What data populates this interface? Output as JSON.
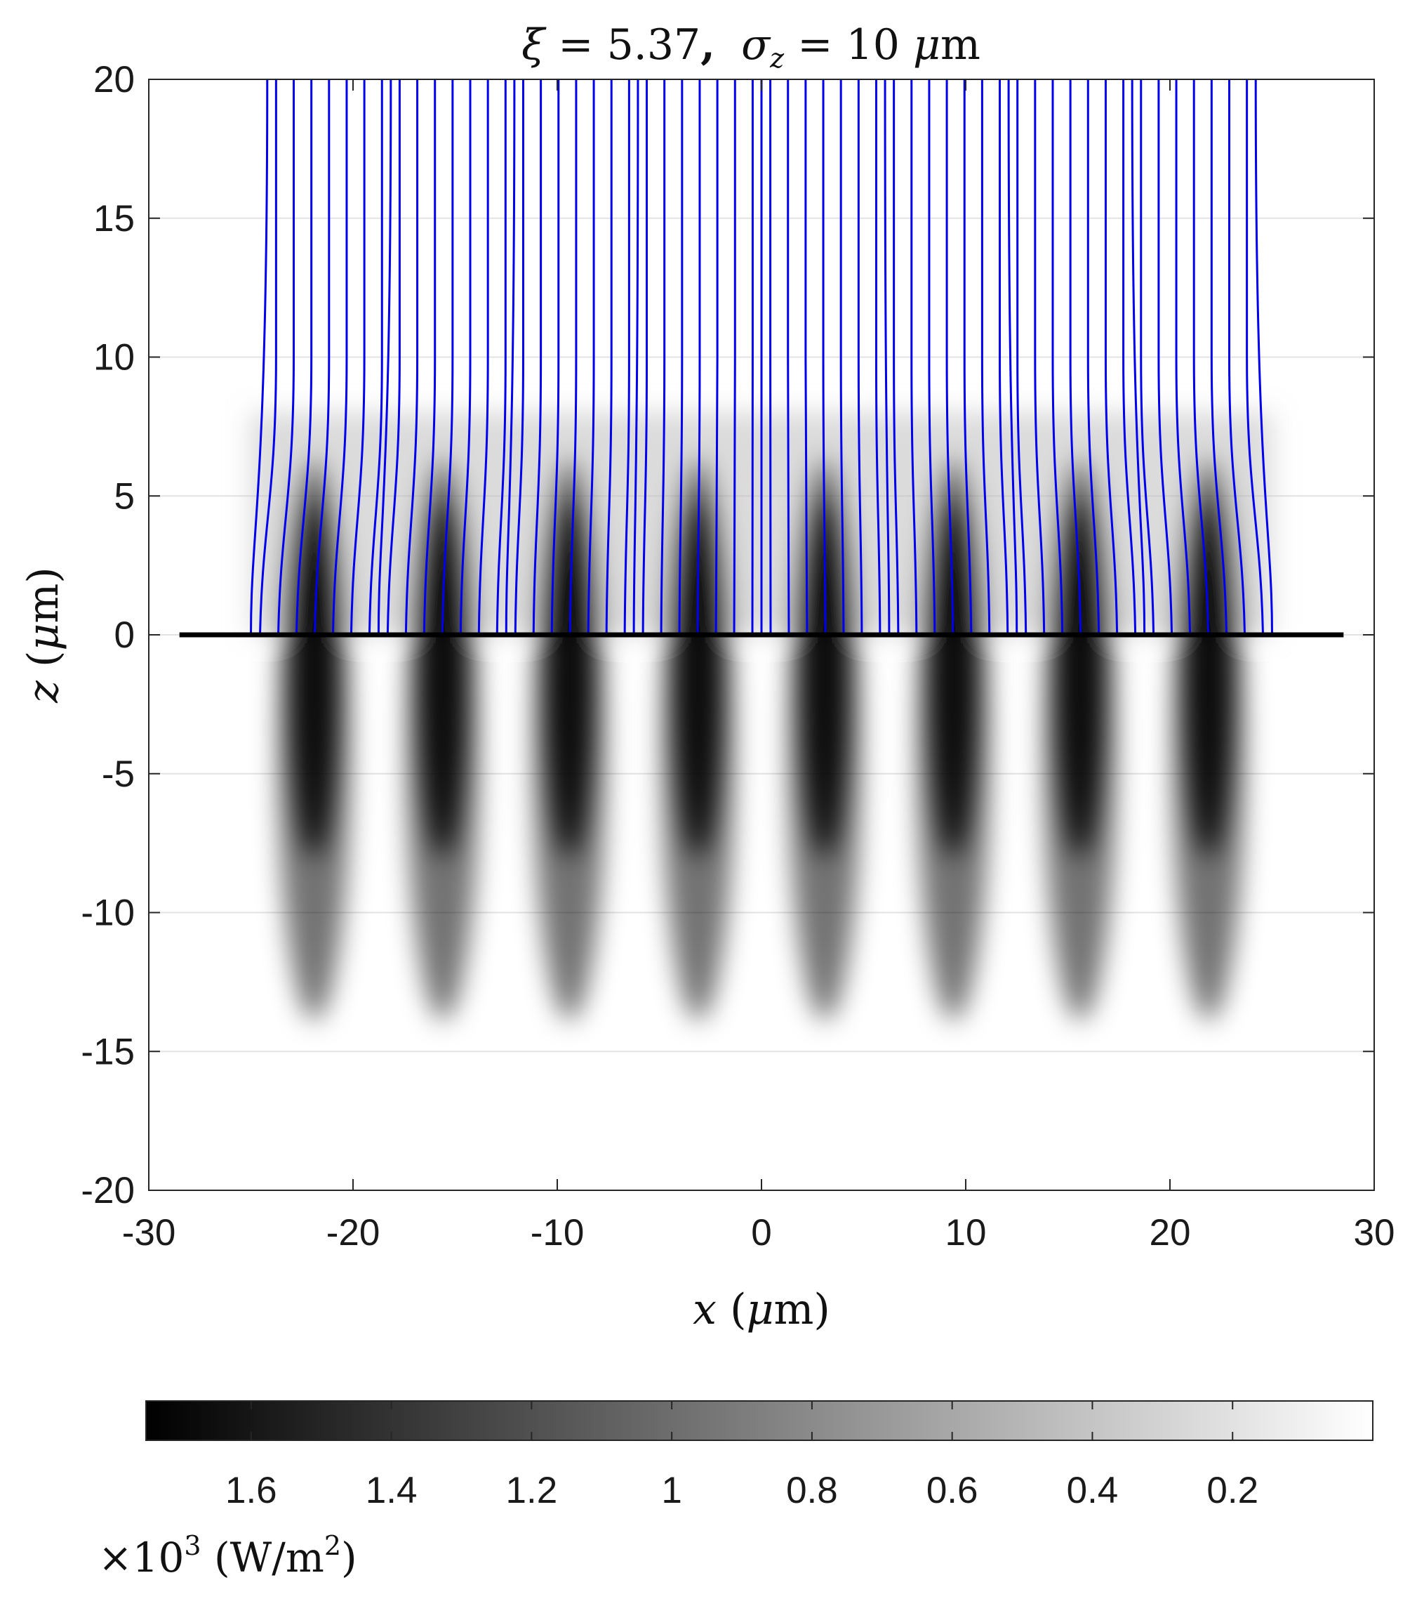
{
  "chart_data": {
    "type": "heatmap",
    "title": {
      "xi_symbol": "ξ",
      "eq1": " = 5.37",
      "comma": ",",
      "sigma_symbol": "σ",
      "sigma_sub": "z",
      "eq2": " = 10 ",
      "mu": "μ",
      "unit": "m"
    },
    "xlabel": {
      "var": "x",
      "unit_open": " (",
      "mu": "μ",
      "unit_close": "m)"
    },
    "ylabel": {
      "var": "z",
      "unit_open": " (",
      "mu": "μ",
      "unit_close": "m)"
    },
    "xlim": [
      -30,
      30
    ],
    "ylim": [
      -20,
      20
    ],
    "xticks": [
      -30,
      -20,
      -10,
      0,
      10,
      20,
      30
    ],
    "yticks": [
      20,
      15,
      10,
      5,
      0,
      -5,
      -10,
      -15,
      -20
    ],
    "grid": true,
    "colormap": "gray",
    "intensity_peaks_x": [
      -21.9,
      -15.6,
      -9.4,
      -3.1,
      3.1,
      9.4,
      15.6,
      21.9
    ],
    "intensity_peak_z": -1.5,
    "intensity_z_extent": [
      -14.5,
      8
    ],
    "surface_line": {
      "z": 0,
      "x_range": [
        -28.5,
        28.5
      ],
      "color": "#000000"
    },
    "field_lines": {
      "color": "#0000ee",
      "start_x_range": [
        -25,
        25
      ],
      "top_x_range": [
        -24.2,
        24.2
      ],
      "top_z": 20,
      "nodes_x": [
        -25,
        -18.75,
        -12.5,
        -6.25,
        0,
        6.25,
        12.5,
        18.75,
        25
      ]
    },
    "colorbar": {
      "orientation": "horizontal",
      "ticks": [
        "1.6",
        "1.4",
        "1.2",
        "1",
        "0.8",
        "0.6",
        "0.4",
        "0.2"
      ],
      "tick_values": [
        1.6,
        1.4,
        1.2,
        1.0,
        0.8,
        0.6,
        0.4,
        0.2
      ],
      "range": [
        1.75,
        0
      ],
      "label_times": "×10",
      "label_exp": "3",
      "label_unit": " (W/m",
      "label_unit_exp": "2",
      "label_close": ")"
    }
  }
}
